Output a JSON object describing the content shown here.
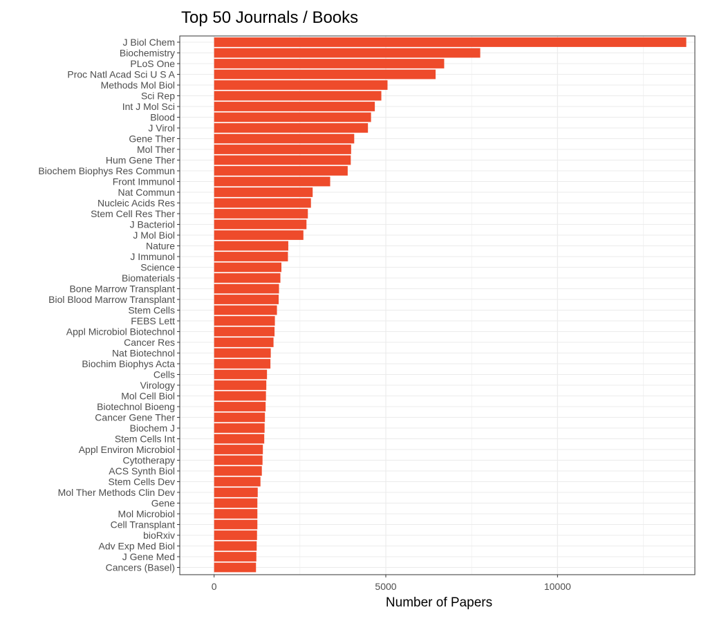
{
  "chart_data": {
    "type": "bar",
    "orientation": "horizontal",
    "title": "Top 50 Journals / Books",
    "xlabel": "Number of Papers",
    "ylabel": "",
    "xlim": [
      -1000,
      14000
    ],
    "x_ticks": [
      0,
      5000,
      10000
    ],
    "x_tick_labels": [
      "0",
      "5000",
      "10000"
    ],
    "grid": true,
    "bar_color": "#EE4B2B",
    "categories": [
      "J Biol Chem",
      "Biochemistry",
      "PLoS One",
      "Proc Natl Acad Sci U S A",
      "Methods Mol Biol",
      "Sci Rep",
      "Int J Mol Sci",
      "Blood",
      "J Virol",
      "Gene Ther",
      "Mol Ther",
      "Hum Gene Ther",
      "Biochem Biophys Res Commun",
      "Front Immunol",
      "Nat Commun",
      "Nucleic Acids Res",
      "Stem Cell Res Ther",
      "J Bacteriol",
      "J Mol Biol",
      "Nature",
      "J Immunol",
      "Science",
      "Biomaterials",
      "Bone Marrow Transplant",
      "Biol Blood Marrow Transplant",
      "Stem Cells",
      "FEBS Lett",
      "Appl Microbiol Biotechnol",
      "Cancer Res",
      "Nat Biotechnol",
      "Biochim Biophys Acta",
      "Cells",
      "Virology",
      "Mol Cell Biol",
      "Biotechnol Bioeng",
      "Cancer Gene Ther",
      "Biochem J",
      "Stem Cells Int",
      "Appl Environ Microbiol",
      "Cytotherapy",
      "ACS Synth Biol",
      "Stem Cells Dev",
      "Mol Ther Methods Clin Dev",
      "Gene",
      "Mol Microbiol",
      "Cell Transplant",
      "bioRxiv",
      "Adv Exp Med Biol",
      "J Gene Med",
      "Cancers (Basel)"
    ],
    "values": [
      13750,
      7750,
      6700,
      6450,
      5050,
      4870,
      4680,
      4570,
      4480,
      4080,
      3990,
      3980,
      3890,
      3380,
      2870,
      2820,
      2730,
      2690,
      2600,
      2160,
      2150,
      1960,
      1930,
      1890,
      1880,
      1830,
      1770,
      1760,
      1730,
      1650,
      1640,
      1540,
      1520,
      1510,
      1500,
      1480,
      1470,
      1460,
      1420,
      1410,
      1390,
      1350,
      1270,
      1260,
      1260,
      1260,
      1250,
      1240,
      1230,
      1220
    ]
  }
}
